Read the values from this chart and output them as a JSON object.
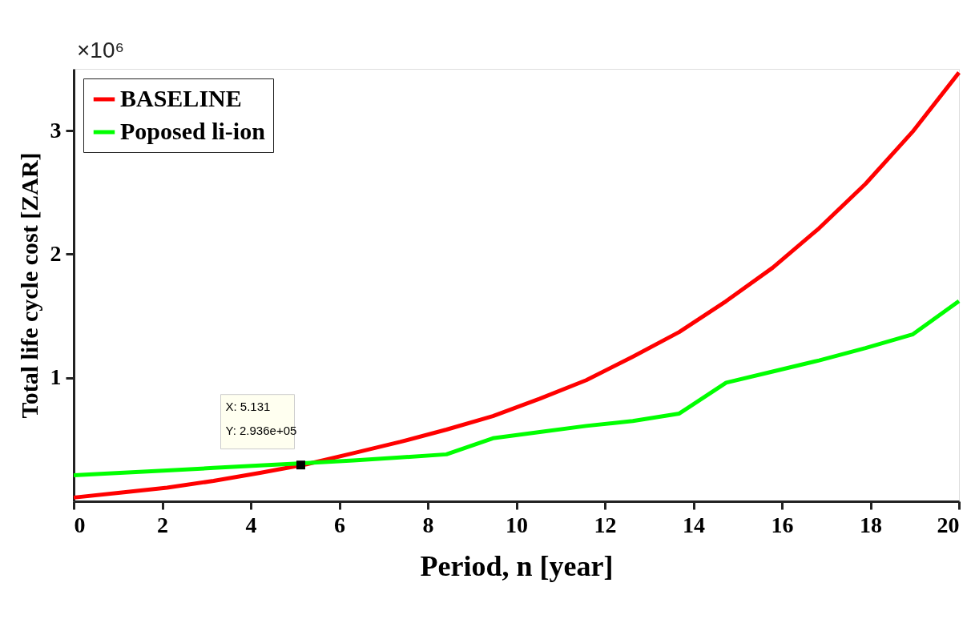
{
  "chart_data": {
    "type": "line",
    "xlabel": "Period, n [year]",
    "ylabel": "Total life cycle cost [ZAR]",
    "xlim": [
      0,
      20
    ],
    "xticks": [
      0,
      2,
      4,
      6,
      8,
      10,
      12,
      14,
      16,
      18,
      20
    ],
    "ylim": [
      0,
      3.5
    ],
    "yticks": [
      1,
      2,
      3
    ],
    "series": [
      {
        "name": "BASELINE",
        "color": "#ff0000",
        "x": [
          0,
          1.05,
          2.11,
          3.16,
          4.21,
          5.26,
          6.32,
          7.37,
          8.42,
          9.47,
          10.53,
          11.58,
          12.63,
          13.68,
          14.74,
          15.79,
          16.84,
          17.89,
          18.95,
          20
        ],
        "values": [
          0.03,
          0.07,
          0.11,
          0.165,
          0.23,
          0.3,
          0.39,
          0.48,
          0.58,
          0.69,
          0.83,
          0.98,
          1.17,
          1.37,
          1.62,
          1.89,
          2.21,
          2.57,
          2.99,
          3.47
        ]
      },
      {
        "name": "Poposed li-ion",
        "color": "#00ff00",
        "x": [
          0,
          1.05,
          2.11,
          3.16,
          4.21,
          5.26,
          6.32,
          7.37,
          8.42,
          9.47,
          10.53,
          11.58,
          12.63,
          13.68,
          14.74,
          15.79,
          16.84,
          17.89,
          18.95,
          20
        ],
        "values": [
          0.21,
          0.23,
          0.25,
          0.27,
          0.29,
          0.31,
          0.33,
          0.355,
          0.38,
          0.51,
          0.56,
          0.61,
          0.65,
          0.71,
          0.96,
          1.05,
          1.14,
          1.24,
          1.35,
          1.62
        ]
      }
    ],
    "annotations": [
      "×10⁶",
      {
        "text": "X: 5.131\nY: 2.936e+05",
        "x": 5.131,
        "y": 0.2936
      }
    ],
    "legend": "top left",
    "grid": false
  }
}
